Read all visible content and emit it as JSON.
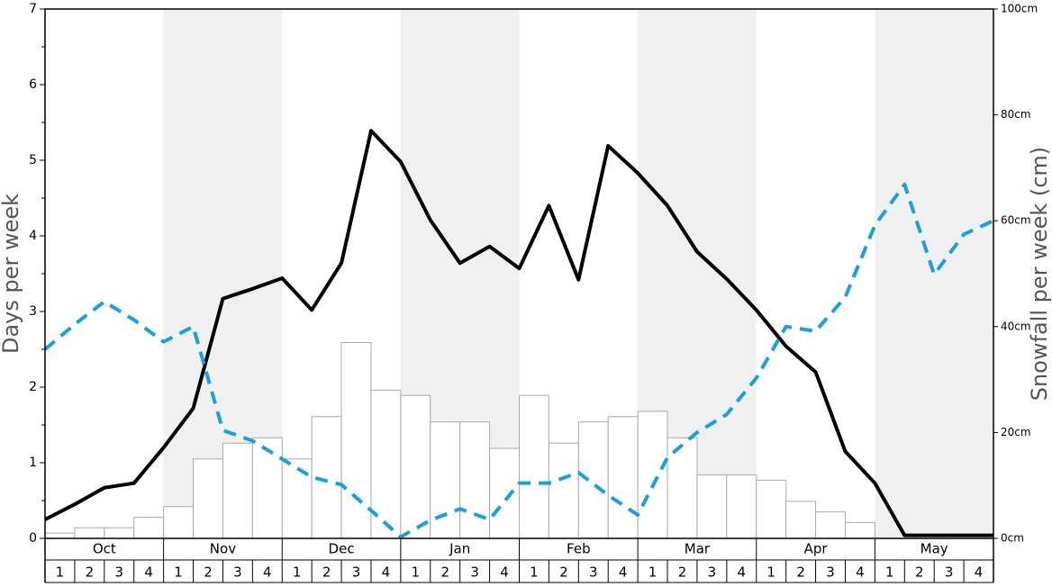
{
  "chart_data": {
    "type": "bar-line",
    "y_label": "Days per week",
    "y2_label": "Snowfall per week (cm)",
    "months": [
      "Oct",
      "Nov",
      "Dec",
      "Jan",
      "Feb",
      "Mar",
      "Apr",
      "May"
    ],
    "week_labels": [
      "1",
      "2",
      "3",
      "4"
    ],
    "ylim": [
      0,
      7
    ],
    "yticks": [
      0,
      1,
      2,
      3,
      4,
      5,
      6,
      7
    ],
    "y2lim": [
      0,
      100
    ],
    "y2ticks": [
      {
        "value": 0,
        "label": "0cm"
      },
      {
        "value": 20,
        "label": "20cm"
      },
      {
        "value": 40,
        "label": "40cm"
      },
      {
        "value": 60,
        "label": "60cm"
      },
      {
        "value": 80,
        "label": "80cm"
      },
      {
        "value": 100,
        "label": "100cm"
      }
    ],
    "bars": {
      "axis": "y2",
      "color": "#ffffff",
      "edge": "#aaaaaa",
      "values": [
        1,
        2,
        2,
        4,
        6,
        15,
        18,
        19,
        15,
        23,
        37,
        28,
        27,
        22,
        22,
        17,
        27,
        18,
        22,
        23,
        24,
        19,
        12,
        12,
        11,
        7,
        5,
        3,
        0,
        0,
        0,
        0
      ]
    },
    "series": [
      {
        "color": "#000000",
        "dash": false,
        "values": [
          0.25,
          0.45,
          0.67,
          0.73,
          1.2,
          1.72,
          3.17,
          3.3,
          3.44,
          3.02,
          3.64,
          5.39,
          4.98,
          4.21,
          3.64,
          3.86,
          3.57,
          4.4,
          3.42,
          5.19,
          4.83,
          4.4,
          3.79,
          3.43,
          3.02,
          2.54,
          2.2,
          1.15,
          0.73,
          0.04,
          0.04,
          0.04,
          0.04
        ]
      },
      {
        "color": "#1a9fe0",
        "dash": true,
        "values": [
          2.5,
          2.83,
          3.13,
          2.89,
          2.6,
          2.8,
          1.43,
          1.29,
          1.05,
          0.81,
          0.71,
          0.37,
          0.02,
          0.24,
          0.39,
          0.25,
          0.73,
          0.73,
          0.87,
          0.57,
          0.31,
          1.07,
          1.4,
          1.64,
          2.12,
          2.8,
          2.74,
          3.19,
          4.14,
          4.68,
          3.49,
          4.02,
          4.2
        ]
      }
    ]
  }
}
